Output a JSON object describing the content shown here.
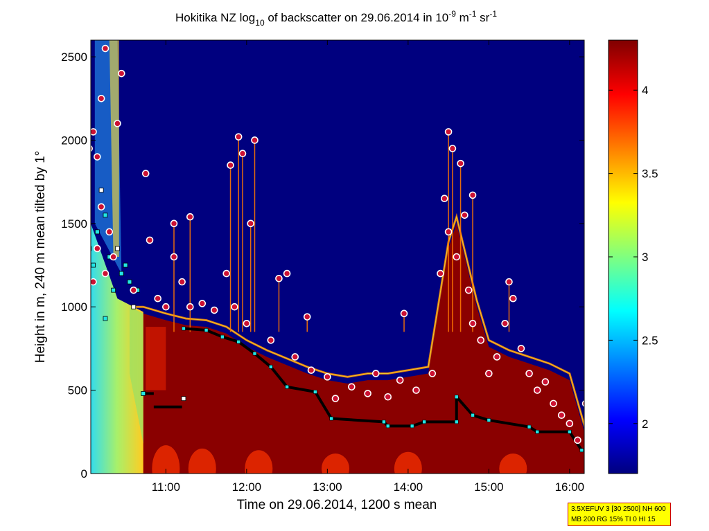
{
  "chart_data": {
    "type": "heatmap",
    "title": {
      "prefix": "Hokitika NZ log",
      "sub": "10",
      "middle": " of backscatter on 29.06.2014 in 10",
      "sup1": "-9",
      "unit_m": " m",
      "sup2": "-1",
      "unit_sr": " sr",
      "sup3": "-1"
    },
    "xlabel": "Time on 29.06.2014, 1200 s mean",
    "ylabel": "Height in m, 240 m mean tilted by 1°",
    "x_ticks": [
      "11:00",
      "12:00",
      "13:00",
      "14:00",
      "15:00",
      "16:00"
    ],
    "x_tick_hours": [
      11,
      12,
      13,
      14,
      15,
      16
    ],
    "xlim_hours": [
      10.0,
      16.2
    ],
    "y_ticks": [
      "0",
      "500",
      "1000",
      "1500",
      "2000",
      "2500"
    ],
    "y_tick_values": [
      0,
      500,
      1000,
      1500,
      2000,
      2500
    ],
    "ylim": [
      0,
      2600
    ],
    "colorbar": {
      "ticks": [
        "2",
        "2.5",
        "3",
        "3.5",
        "4"
      ],
      "tick_values": [
        2,
        2.5,
        3,
        3.5,
        4
      ],
      "clim": [
        1.7,
        4.3
      ],
      "colormap": "jet"
    },
    "background_color": "#00007f",
    "saturated_color": "#7f0000",
    "profile": [
      [
        10.0,
        1000,
        0
      ],
      [
        10.3,
        980,
        0
      ],
      [
        10.5,
        960,
        0
      ],
      [
        10.72,
        960,
        0
      ],
      [
        11.0,
        920,
        0
      ],
      [
        11.25,
        890,
        0
      ],
      [
        11.5,
        880,
        0
      ],
      [
        11.75,
        840,
        0
      ],
      [
        12.0,
        760,
        0
      ],
      [
        12.25,
        700,
        0
      ],
      [
        12.5,
        650,
        0
      ],
      [
        12.75,
        600,
        0
      ],
      [
        13.0,
        560,
        0
      ],
      [
        13.25,
        540,
        0
      ],
      [
        13.5,
        560,
        0
      ],
      [
        13.75,
        560,
        0
      ],
      [
        14.0,
        580,
        0
      ],
      [
        14.25,
        600,
        0
      ],
      [
        14.35,
        900,
        0
      ],
      [
        14.5,
        1350,
        0
      ],
      [
        14.6,
        1500,
        0
      ],
      [
        14.7,
        1300,
        0
      ],
      [
        14.85,
        1000,
        0
      ],
      [
        15.0,
        760,
        0
      ],
      [
        15.25,
        700,
        0
      ],
      [
        15.5,
        660,
        0
      ],
      [
        15.75,
        620,
        0
      ],
      [
        16.0,
        560,
        0
      ],
      [
        16.2,
        220,
        0
      ]
    ],
    "lower_boundary": [
      [
        10.7,
        480
      ],
      [
        10.72,
        480
      ],
      [
        10.9,
        400
      ],
      [
        11.2,
        400
      ],
      [
        11.22,
        880
      ],
      [
        11.8,
        820
      ],
      [
        12.0,
        740
      ],
      [
        12.25,
        670
      ],
      [
        12.4,
        600
      ],
      [
        12.5,
        520
      ],
      [
        12.85,
        490
      ],
      [
        13.0,
        320
      ],
      [
        13.7,
        300
      ],
      [
        13.75,
        280
      ],
      [
        14.05,
        280
      ],
      [
        14.2,
        310
      ],
      [
        14.5,
        310
      ],
      [
        14.6,
        460
      ],
      [
        14.8,
        340
      ],
      [
        15.0,
        320
      ],
      [
        15.5,
        270
      ],
      [
        15.6,
        250
      ],
      [
        16.0,
        250
      ],
      [
        16.15,
        130
      ]
    ],
    "spikes": [
      [
        11.9,
        2020
      ],
      [
        11.95,
        1920
      ],
      [
        12.1,
        2000
      ],
      [
        12.05,
        1500
      ],
      [
        11.8,
        1850
      ],
      [
        12.4,
        1170
      ],
      [
        11.3,
        1540
      ],
      [
        11.1,
        1500
      ],
      [
        14.5,
        2050
      ],
      [
        14.55,
        1950
      ],
      [
        14.8,
        1670
      ],
      [
        14.65,
        1860
      ],
      [
        15.25,
        1150
      ],
      [
        13.95,
        960
      ],
      [
        12.75,
        940
      ]
    ],
    "cloud_markers": [
      [
        10.05,
        1950
      ],
      [
        10.1,
        2050
      ],
      [
        10.15,
        1900
      ],
      [
        10.2,
        2250
      ],
      [
        10.25,
        2550
      ],
      [
        10.2,
        1600
      ],
      [
        10.3,
        1450
      ],
      [
        10.15,
        1350
      ],
      [
        10.1,
        1150
      ],
      [
        10.25,
        1200
      ],
      [
        10.35,
        1300
      ],
      [
        10.4,
        2100
      ],
      [
        10.45,
        2400
      ],
      [
        10.6,
        1100
      ],
      [
        10.75,
        1800
      ],
      [
        10.8,
        1400
      ],
      [
        10.9,
        1050
      ],
      [
        11.0,
        1000
      ],
      [
        11.1,
        1300
      ],
      [
        11.2,
        1150
      ],
      [
        11.3,
        1000
      ],
      [
        11.45,
        1020
      ],
      [
        11.6,
        980
      ],
      [
        11.75,
        1200
      ],
      [
        11.85,
        1000
      ],
      [
        12.0,
        900
      ],
      [
        12.3,
        800
      ],
      [
        12.5,
        1200
      ],
      [
        12.6,
        700
      ],
      [
        12.8,
        620
      ],
      [
        13.0,
        580
      ],
      [
        13.1,
        450
      ],
      [
        13.3,
        520
      ],
      [
        13.5,
        480
      ],
      [
        13.6,
        600
      ],
      [
        13.75,
        460
      ],
      [
        13.9,
        560
      ],
      [
        14.1,
        500
      ],
      [
        14.3,
        600
      ],
      [
        14.4,
        1200
      ],
      [
        14.45,
        1650
      ],
      [
        14.5,
        1450
      ],
      [
        14.6,
        1300
      ],
      [
        14.7,
        1550
      ],
      [
        14.75,
        1100
      ],
      [
        14.8,
        900
      ],
      [
        14.9,
        800
      ],
      [
        15.0,
        600
      ],
      [
        15.1,
        700
      ],
      [
        15.2,
        900
      ],
      [
        15.3,
        1050
      ],
      [
        15.4,
        750
      ],
      [
        15.5,
        600
      ],
      [
        15.6,
        500
      ],
      [
        15.7,
        550
      ],
      [
        15.8,
        420
      ],
      [
        15.9,
        350
      ],
      [
        16.0,
        300
      ],
      [
        16.1,
        200
      ],
      [
        16.2,
        420
      ]
    ],
    "square_markers": [
      [
        10.0,
        780
      ],
      [
        10.05,
        1350
      ],
      [
        10.1,
        1250
      ],
      [
        10.15,
        1450
      ],
      [
        10.2,
        1700
      ],
      [
        10.25,
        1550
      ],
      [
        10.3,
        1300
      ],
      [
        10.35,
        1100
      ],
      [
        10.4,
        1350
      ],
      [
        10.45,
        1200
      ],
      [
        10.5,
        1250
      ],
      [
        10.55,
        1150
      ],
      [
        10.6,
        1000
      ],
      [
        10.65,
        1100
      ],
      [
        10.25,
        930
      ],
      [
        10.72,
        480
      ],
      [
        11.22,
        450
      ]
    ],
    "mlh_line": [
      [
        11.22,
        870
      ],
      [
        11.5,
        860
      ],
      [
        11.7,
        820
      ],
      [
        11.9,
        790
      ],
      [
        12.1,
        720
      ],
      [
        12.3,
        640
      ],
      [
        12.5,
        520
      ],
      [
        12.85,
        490
      ],
      [
        13.05,
        330
      ],
      [
        13.7,
        310
      ],
      [
        13.75,
        285
      ],
      [
        14.05,
        285
      ],
      [
        14.2,
        310
      ],
      [
        14.6,
        310
      ],
      [
        14.6,
        460
      ],
      [
        14.8,
        350
      ],
      [
        15.0,
        320
      ],
      [
        15.5,
        280
      ],
      [
        15.6,
        250
      ],
      [
        16.0,
        250
      ],
      [
        16.15,
        140
      ]
    ]
  },
  "info_box": {
    "line1": "3.5XEFUV 3 [30 2500] NH 600",
    "line2": "MB 200 RG 15% TI 0 HI 15"
  }
}
